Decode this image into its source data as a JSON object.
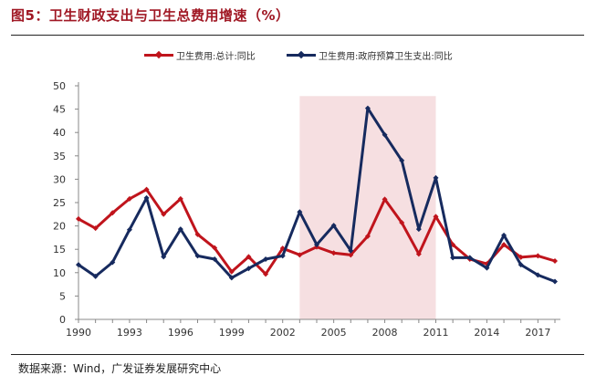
{
  "chart_data": {
    "type": "line",
    "title": "图5：卫生财政支出与卫生总费用增速（%）",
    "xlabel": "",
    "ylabel": "",
    "ylim": [
      0,
      50
    ],
    "yticks": [
      0,
      5,
      10,
      15,
      20,
      25,
      30,
      35,
      40,
      45,
      50
    ],
    "xlim": [
      1990,
      2018
    ],
    "xtick_labels": [
      "1990",
      "1993",
      "1996",
      "1999",
      "2002",
      "2005",
      "2008",
      "2011",
      "2014",
      "2017"
    ],
    "x": [
      1990,
      1991,
      1992,
      1993,
      1994,
      1995,
      1996,
      1997,
      1998,
      1999,
      2000,
      2001,
      2002,
      2003,
      2004,
      2005,
      2006,
      2007,
      2008,
      2009,
      2010,
      2011,
      2012,
      2013,
      2014,
      2015,
      2016,
      2017,
      2018
    ],
    "series": [
      {
        "name": "卫生费用:总计:同比",
        "color": "#c0141c",
        "values": [
          21.5,
          19.5,
          22.8,
          25.8,
          27.8,
          22.5,
          25.8,
          18.2,
          15.3,
          10.2,
          13.4,
          9.7,
          15.2,
          13.8,
          15.5,
          14.2,
          13.8,
          17.8,
          25.7,
          20.7,
          14.0,
          22.0,
          16.0,
          12.9,
          11.9,
          16.0,
          13.3,
          13.6,
          12.5
        ]
      },
      {
        "name": "卫生费用:政府预算卫生支出:同比",
        "color": "#162a5e",
        "values": [
          11.7,
          9.2,
          12.2,
          19.2,
          26.0,
          13.4,
          19.3,
          13.6,
          12.9,
          8.9,
          10.9,
          12.9,
          13.6,
          23.0,
          16.0,
          20.1,
          14.7,
          45.2,
          39.5,
          34.0,
          19.3,
          30.3,
          13.2,
          13.2,
          11.0,
          18.0,
          11.7,
          9.5,
          8.1
        ]
      }
    ],
    "shaded_region": {
      "x_start": 2003,
      "x_end": 2011,
      "color": "#f6dfe1"
    },
    "legend_position": "top-center"
  },
  "source_text": "数据来源：Wind，广发证券发展研究中心"
}
